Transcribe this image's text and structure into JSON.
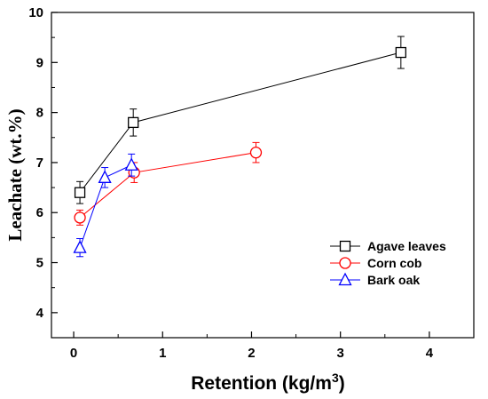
{
  "chart_data": {
    "type": "scatter",
    "xlabel": "Retention (kg/m",
    "xlabel_superscript": "3",
    "xlabel_suffix": ")",
    "ylabel": "Leachate (wt.%)",
    "xlim": [
      -0.25,
      4.5
    ],
    "ylim": [
      3.5,
      10
    ],
    "x_ticks": [
      0,
      1,
      2,
      3,
      4
    ],
    "y_ticks": [
      4,
      5,
      6,
      7,
      8,
      9,
      10
    ],
    "grid": false,
    "legend_position": "lower-right",
    "series": [
      {
        "name": "Agave leaves",
        "marker": "square",
        "color": "#000000",
        "x": [
          0.07,
          0.67,
          3.68
        ],
        "y": [
          6.4,
          7.8,
          9.2
        ],
        "error": [
          0.22,
          0.27,
          0.32
        ]
      },
      {
        "name": "Corn cob",
        "marker": "circle",
        "color": "#ff0000",
        "x": [
          0.07,
          0.68,
          2.05
        ],
        "y": [
          5.9,
          6.8,
          7.2
        ],
        "error": [
          0.15,
          0.2,
          0.2
        ]
      },
      {
        "name": "Bark oak",
        "marker": "triangle",
        "color": "#0000ff",
        "x": [
          0.07,
          0.35,
          0.65
        ],
        "y": [
          5.3,
          6.7,
          6.95
        ],
        "error": [
          0.18,
          0.2,
          0.22
        ]
      }
    ]
  }
}
